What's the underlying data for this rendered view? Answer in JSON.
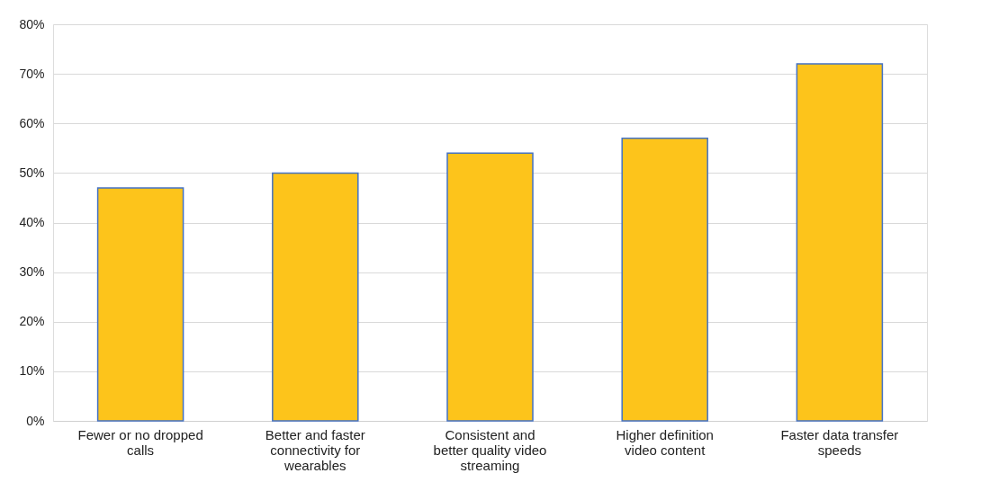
{
  "chart_data": {
    "type": "bar",
    "categories": [
      "Fewer or no dropped calls",
      "Better and faster connectivity for wearables",
      "Consistent and better quality video streaming",
      "Higher definition video content",
      "Faster data transfer speeds"
    ],
    "values": [
      47,
      50,
      54,
      57,
      72
    ],
    "color": "#fdc41b",
    "ylim": [
      0,
      80
    ],
    "yticks": [
      {
        "value": 0,
        "label": "0%"
      },
      {
        "value": 10,
        "label": "10%"
      },
      {
        "value": 20,
        "label": "20%"
      },
      {
        "value": 30,
        "label": "30%"
      },
      {
        "value": 40,
        "label": "40%"
      },
      {
        "value": 50,
        "label": "50%"
      },
      {
        "value": 60,
        "label": "60%"
      },
      {
        "value": 70,
        "label": "70%"
      },
      {
        "value": 80,
        "label": "80%"
      }
    ],
    "grid": "y"
  }
}
